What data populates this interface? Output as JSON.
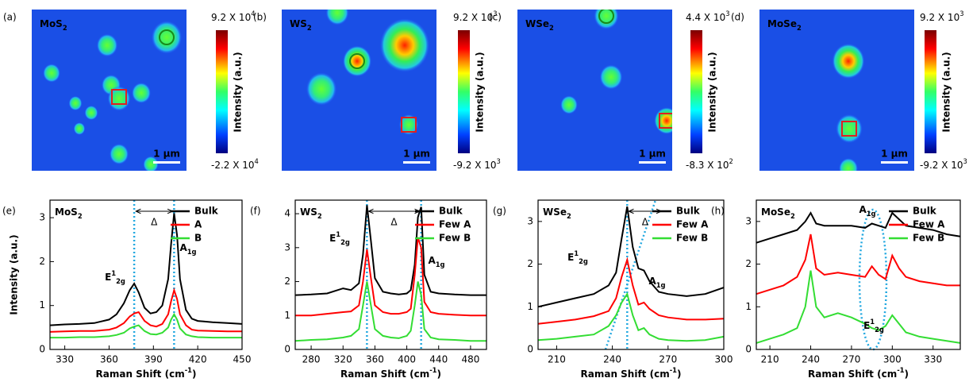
{
  "maps": [
    {
      "panel": "(a)",
      "title": [
        "MoS",
        {
          "sub": "2"
        }
      ],
      "cbar_max": [
        "9.2 X 10",
        {
          "sup": "4"
        }
      ],
      "cbar_min": [
        "-2.2 X 10",
        {
          "sup": "4"
        }
      ],
      "cbar_label": "Intensity (a.u.)",
      "scale": "1 μm"
    },
    {
      "panel": "(b)",
      "title": [
        "WS",
        {
          "sub": "2"
        }
      ],
      "cbar_max": [
        "9.2 X 10",
        {
          "sup": "3"
        }
      ],
      "cbar_min": [
        "-9.2 X 10",
        {
          "sup": "3"
        }
      ],
      "cbar_label": "Intensity (a.u.)",
      "scale": "1 μm"
    },
    {
      "panel": "(c)",
      "title": [
        "WSe",
        {
          "sub": "2"
        }
      ],
      "cbar_max": [
        "4.4 X 10",
        {
          "sup": "3"
        }
      ],
      "cbar_min": [
        "-8.3 X 10",
        {
          "sup": "2"
        }
      ],
      "cbar_label": "Intensity (a.u.)",
      "scale": "1 μm"
    },
    {
      "panel": "(d)",
      "title": [
        "MoSe",
        {
          "sub": "2"
        }
      ],
      "cbar_max": [
        "9.2 X 10",
        {
          "sup": "3"
        }
      ],
      "cbar_min": [
        "-9.2 X 10",
        {
          "sup": "3"
        }
      ],
      "cbar_label": "Intensity (a.u.)",
      "scale": "1 μm"
    }
  ],
  "chart_data": [
    {
      "type": "line",
      "panel": "(e)",
      "title": [
        "MoS",
        {
          "sub": "2"
        }
      ],
      "xlabel": [
        "Raman Shift (cm",
        {
          "sup": "-1"
        },
        ")"
      ],
      "ylabel": "Intensity (a.u.)",
      "xlim": [
        320,
        450
      ],
      "xticks": [
        330,
        360,
        390,
        420,
        450
      ],
      "ylim": [
        0,
        3.4
      ],
      "yticks": [
        0,
        1,
        2,
        3
      ],
      "vlines": [
        377,
        404
      ],
      "legend": "top-right",
      "annotations": [
        {
          "text": [
            "E",
            {
              "sup": "1"
            },
            {
              "sub": "2g"
            }
          ]
        },
        {
          "text": [
            "A",
            {
              "sub": "1g"
            }
          ]
        },
        {
          "text": "Δ"
        }
      ],
      "x": [
        320,
        330,
        340,
        350,
        360,
        365,
        370,
        374,
        377,
        380,
        384,
        388,
        392,
        396,
        400,
        402,
        404,
        406,
        408,
        412,
        416,
        420,
        430,
        440,
        450
      ],
      "series": [
        {
          "name": "Bulk",
          "color": "#000000",
          "values": [
            0.55,
            0.57,
            0.58,
            0.6,
            0.68,
            0.8,
            1.05,
            1.35,
            1.5,
            1.3,
            0.95,
            0.82,
            0.85,
            1.0,
            1.6,
            2.4,
            3.1,
            2.6,
            1.6,
            0.9,
            0.7,
            0.65,
            0.62,
            0.6,
            0.58
          ]
        },
        {
          "name": "A",
          "color": "#ff0000",
          "values": [
            0.4,
            0.41,
            0.42,
            0.42,
            0.45,
            0.5,
            0.6,
            0.75,
            0.82,
            0.85,
            0.65,
            0.55,
            0.52,
            0.58,
            0.8,
            1.1,
            1.35,
            1.15,
            0.8,
            0.55,
            0.45,
            0.43,
            0.42,
            0.41,
            0.41
          ]
        },
        {
          "name": "B",
          "color": "#33dd33",
          "values": [
            0.27,
            0.27,
            0.28,
            0.28,
            0.3,
            0.33,
            0.38,
            0.48,
            0.52,
            0.55,
            0.42,
            0.35,
            0.34,
            0.38,
            0.5,
            0.68,
            0.8,
            0.68,
            0.48,
            0.34,
            0.3,
            0.28,
            0.27,
            0.27,
            0.27
          ]
        }
      ]
    },
    {
      "type": "line",
      "panel": "(f)",
      "title": [
        "WS",
        {
          "sub": "2"
        }
      ],
      "xlabel": [
        "Raman Shift (cm",
        {
          "sup": "-1"
        },
        ")"
      ],
      "xlim": [
        260,
        500
      ],
      "xticks": [
        280,
        320,
        360,
        400,
        440,
        480
      ],
      "ylim": [
        0,
        4.4
      ],
      "yticks": [
        0,
        1,
        2,
        3,
        4
      ],
      "vlines": [
        350,
        418
      ],
      "legend": "top-right",
      "annotations": [
        {
          "text": [
            "E",
            {
              "sup": "1"
            },
            {
              "sub": "2g"
            }
          ]
        },
        {
          "text": [
            "A",
            {
              "sub": "1g"
            }
          ]
        },
        {
          "text": "Δ"
        }
      ],
      "x": [
        260,
        280,
        300,
        320,
        330,
        340,
        345,
        350,
        355,
        360,
        370,
        380,
        390,
        400,
        405,
        410,
        414,
        418,
        422,
        430,
        440,
        460,
        480,
        500
      ],
      "series": [
        {
          "name": "Bulk",
          "color": "#000000",
          "values": [
            1.6,
            1.62,
            1.65,
            1.8,
            1.75,
            1.95,
            2.8,
            4.25,
            3.2,
            2.1,
            1.7,
            1.65,
            1.62,
            1.65,
            1.75,
            2.5,
            3.9,
            4.2,
            2.2,
            1.7,
            1.65,
            1.62,
            1.6,
            1.6
          ]
        },
        {
          "name": "Few A",
          "color": "#ff0000",
          "values": [
            1.0,
            1.0,
            1.05,
            1.1,
            1.12,
            1.3,
            2.0,
            2.95,
            2.1,
            1.3,
            1.1,
            1.05,
            1.05,
            1.1,
            1.2,
            2.2,
            3.3,
            3.0,
            1.4,
            1.1,
            1.05,
            1.02,
            1.0,
            1.0
          ]
        },
        {
          "name": "Few B",
          "color": "#33dd33",
          "values": [
            0.25,
            0.28,
            0.3,
            0.35,
            0.4,
            0.6,
            1.3,
            2.0,
            1.3,
            0.6,
            0.4,
            0.35,
            0.33,
            0.4,
            0.55,
            1.3,
            2.0,
            1.6,
            0.6,
            0.35,
            0.3,
            0.28,
            0.25,
            0.25
          ]
        }
      ]
    },
    {
      "type": "line",
      "panel": "(g)",
      "title": [
        "WSe",
        {
          "sub": "2"
        }
      ],
      "xlabel": [
        "Raman Shift (cm",
        {
          "sup": "-1"
        },
        ")"
      ],
      "xlim": [
        200,
        300
      ],
      "xticks": [
        210,
        240,
        270,
        300
      ],
      "ylim": [
        0,
        3.5
      ],
      "yticks": [
        0,
        1,
        2,
        3
      ],
      "vlines": [
        248
      ],
      "legend": "top-right",
      "annotations": [
        {
          "text": [
            "E",
            {
              "sup": "1"
            },
            {
              "sub": "2g"
            }
          ]
        },
        {
          "text": [
            "A",
            {
              "sub": "1g"
            }
          ]
        },
        {
          "text": "Δ"
        }
      ],
      "x": [
        200,
        210,
        220,
        230,
        238,
        242,
        245,
        248,
        251,
        254,
        257,
        260,
        265,
        270,
        280,
        290,
        300
      ],
      "series": [
        {
          "name": "Bulk",
          "color": "#000000",
          "values": [
            1.0,
            1.1,
            1.2,
            1.3,
            1.5,
            1.8,
            2.6,
            3.35,
            2.4,
            1.9,
            1.85,
            1.6,
            1.35,
            1.3,
            1.25,
            1.3,
            1.45
          ]
        },
        {
          "name": "Few A",
          "color": "#ff0000",
          "values": [
            0.6,
            0.65,
            0.7,
            0.78,
            0.9,
            1.2,
            1.7,
            2.1,
            1.5,
            1.05,
            1.1,
            0.95,
            0.8,
            0.75,
            0.7,
            0.7,
            0.72
          ]
        },
        {
          "name": "Few B",
          "color": "#33dd33",
          "values": [
            0.22,
            0.25,
            0.3,
            0.35,
            0.55,
            0.8,
            1.1,
            1.3,
            0.8,
            0.45,
            0.5,
            0.35,
            0.25,
            0.22,
            0.2,
            0.22,
            0.3
          ]
        }
      ]
    },
    {
      "type": "line",
      "panel": "(h)",
      "title": [
        "MoSe",
        {
          "sub": "2"
        }
      ],
      "xlabel": [
        "Raman Shift (cm",
        {
          "sup": "-1"
        },
        ")"
      ],
      "xlim": [
        200,
        350
      ],
      "xticks": [
        210,
        240,
        270,
        300,
        330
      ],
      "ylim": [
        0,
        3.5
      ],
      "yticks": [
        0,
        1,
        2,
        3
      ],
      "vlines": [],
      "legend": "top-right",
      "annotations": [
        {
          "text": [
            "A",
            {
              "sub": "1g"
            }
          ]
        },
        {
          "text": [
            "E",
            {
              "sup": "1"
            },
            {
              "sub": "2g"
            }
          ]
        }
      ],
      "x": [
        200,
        210,
        220,
        230,
        236,
        240,
        244,
        250,
        260,
        270,
        280,
        285,
        290,
        295,
        300,
        305,
        310,
        320,
        330,
        340,
        350
      ],
      "series": [
        {
          "name": "Bulk",
          "color": "#000000",
          "values": [
            2.5,
            2.6,
            2.7,
            2.8,
            3.0,
            3.2,
            2.95,
            2.9,
            2.9,
            2.9,
            2.85,
            2.95,
            2.9,
            2.85,
            3.2,
            3.05,
            2.9,
            2.85,
            2.8,
            2.7,
            2.65
          ]
        },
        {
          "name": "Few A",
          "color": "#ff0000",
          "values": [
            1.3,
            1.4,
            1.5,
            1.7,
            2.1,
            2.7,
            1.9,
            1.75,
            1.8,
            1.75,
            1.7,
            1.95,
            1.75,
            1.65,
            2.2,
            1.9,
            1.7,
            1.6,
            1.55,
            1.5,
            1.5
          ]
        },
        {
          "name": "Few B",
          "color": "#33dd33",
          "values": [
            0.15,
            0.25,
            0.35,
            0.5,
            1.0,
            1.85,
            1.0,
            0.75,
            0.85,
            0.75,
            0.6,
            0.5,
            0.45,
            0.55,
            0.8,
            0.6,
            0.4,
            0.3,
            0.25,
            0.2,
            0.15
          ]
        }
      ]
    }
  ]
}
